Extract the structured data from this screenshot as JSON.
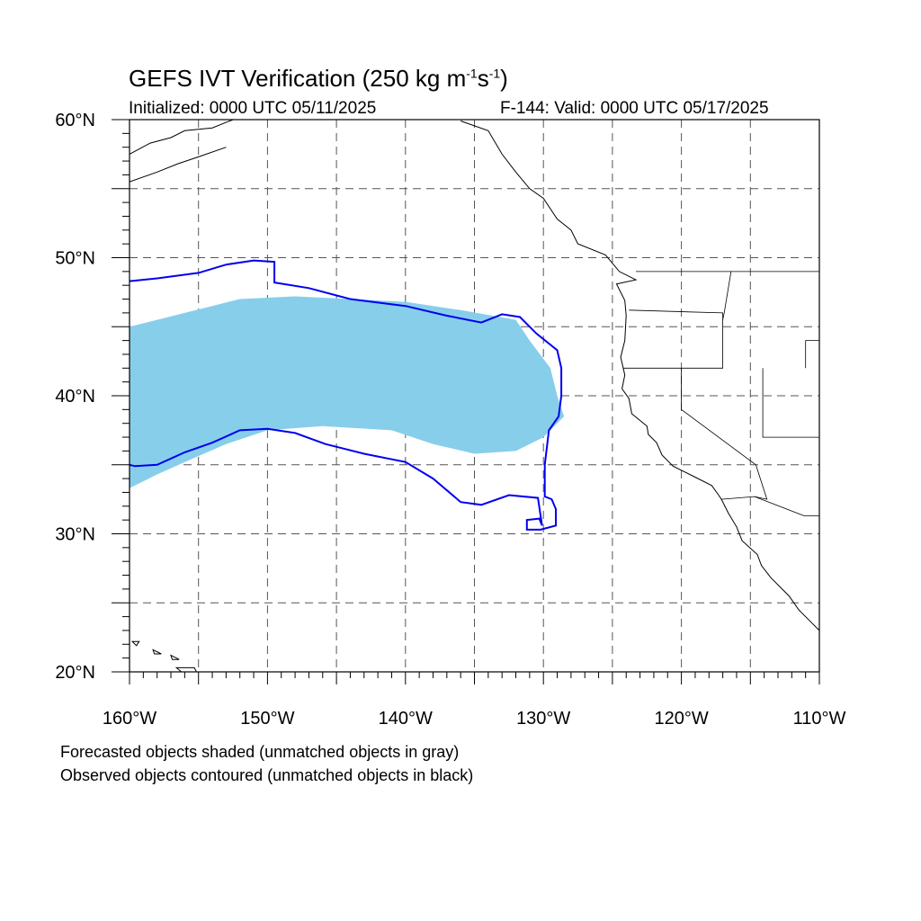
{
  "header": {
    "title_prefix": "GEFS IVT Verification (250 kg m",
    "title_exp1": "-1",
    "title_mid": "s",
    "title_exp2": "-1",
    "title_suffix": ")",
    "initialized": "Initialized: 0000 UTC 05/11/2025",
    "valid": "F-144: Valid: 0000 UTC 05/17/2025"
  },
  "map": {
    "lon_range": [
      -160,
      -110
    ],
    "lat_range": [
      20,
      60
    ],
    "grid_lon_step": 5,
    "grid_lat_step": 5,
    "x_ticks": [
      "160°W",
      "150°W",
      "140°W",
      "130°W",
      "120°W",
      "110°W"
    ],
    "y_ticks": [
      "60°N",
      "50°N",
      "40°N",
      "30°N",
      "20°N"
    ],
    "colors": {
      "forecast_fill": "#87ceeb",
      "observed_contour": "#0000ee",
      "coast": "#000000",
      "grid": "#555555"
    },
    "forecast_object": {
      "description_hint": "forecasted IVT object (matched)",
      "lonlat": [
        [
          -160,
          45
        ],
        [
          -158,
          45.5
        ],
        [
          -156,
          46
        ],
        [
          -154,
          46.5
        ],
        [
          -152,
          47
        ],
        [
          -148,
          47.2
        ],
        [
          -144,
          47
        ],
        [
          -140,
          46.8
        ],
        [
          -136,
          46.2
        ],
        [
          -132,
          45.5
        ],
        [
          -131,
          44
        ],
        [
          -129.5,
          42
        ],
        [
          -129,
          40
        ],
        [
          -128.5,
          38.5
        ],
        [
          -130,
          37
        ],
        [
          -132,
          36
        ],
        [
          -135,
          35.8
        ],
        [
          -138,
          36.5
        ],
        [
          -141,
          37.5
        ],
        [
          -146,
          37.8
        ],
        [
          -150,
          37.5
        ],
        [
          -153,
          36.5
        ],
        [
          -156,
          35.2
        ],
        [
          -158,
          34.3
        ],
        [
          -160,
          33.3
        ]
      ]
    },
    "observed_object": {
      "description_hint": "observed IVT object contour (matched)",
      "lonlat": [
        [
          -160,
          48.3
        ],
        [
          -158,
          48.5
        ],
        [
          -155,
          48.9
        ],
        [
          -153,
          49.5
        ],
        [
          -151,
          49.8
        ],
        [
          -149.5,
          49.7
        ],
        [
          -149.5,
          48.2
        ],
        [
          -147,
          47.8
        ],
        [
          -144,
          47
        ],
        [
          -140,
          46.5
        ],
        [
          -137,
          45.8
        ],
        [
          -134.5,
          45.3
        ],
        [
          -133,
          45.9
        ],
        [
          -131.7,
          45.7
        ],
        [
          -130.5,
          44.5
        ],
        [
          -129,
          43.3
        ],
        [
          -128.7,
          42
        ],
        [
          -128.7,
          40
        ],
        [
          -128.9,
          38.5
        ],
        [
          -129.6,
          37.5
        ],
        [
          -129.9,
          35
        ],
        [
          -129.9,
          32.7
        ],
        [
          -129.4,
          32.5
        ],
        [
          -129.1,
          31.8
        ],
        [
          -129.1,
          30.6
        ],
        [
          -130.2,
          30.3
        ],
        [
          -131.2,
          30.3
        ],
        [
          -131.2,
          31.0
        ],
        [
          -130.3,
          31.1
        ],
        [
          -130.1,
          30.6
        ],
        [
          -130.4,
          32.6
        ],
        [
          -132.5,
          32.8
        ],
        [
          -134.5,
          32.1
        ],
        [
          -136,
          32.3
        ],
        [
          -138,
          34
        ],
        [
          -140,
          35.2
        ],
        [
          -143,
          35.8
        ],
        [
          -145.8,
          36.5
        ],
        [
          -148,
          37.3
        ],
        [
          -150,
          37.6
        ],
        [
          -152,
          37.5
        ],
        [
          -154,
          36.6
        ],
        [
          -156,
          35.9
        ],
        [
          -158,
          35.0
        ],
        [
          -159.6,
          34.9
        ],
        [
          -160,
          35.0
        ]
      ]
    },
    "coastline_lonlat": [
      [
        -136,
        59.9
      ],
      [
        -134,
        59.2
      ],
      [
        -133,
        57.5
      ],
      [
        -132,
        56.2
      ],
      [
        -131,
        55
      ],
      [
        -130,
        54.3
      ],
      [
        -129,
        52.8
      ],
      [
        -128,
        52
      ],
      [
        -127.5,
        51
      ],
      [
        -125.5,
        50.2
      ],
      [
        -124.5,
        49
      ],
      [
        -123.3,
        48.4
      ],
      [
        -124.7,
        48.1
      ],
      [
        -124.1,
        46.9
      ],
      [
        -124,
        45.8
      ],
      [
        -124.1,
        44
      ],
      [
        -124.4,
        42.8
      ],
      [
        -124.1,
        41.5
      ],
      [
        -124.3,
        40.5
      ],
      [
        -123.8,
        39.8
      ],
      [
        -123.6,
        38.7
      ],
      [
        -122.5,
        37.8
      ],
      [
        -122.4,
        37.2
      ],
      [
        -121.8,
        36.6
      ],
      [
        -121.4,
        35.7
      ],
      [
        -120.6,
        34.9
      ],
      [
        -119.2,
        34.2
      ],
      [
        -117.8,
        33.5
      ],
      [
        -117.3,
        32.8
      ],
      [
        -117.1,
        32.5
      ],
      [
        -116.6,
        31.5
      ],
      [
        -116,
        30.5
      ],
      [
        -115.6,
        29.5
      ],
      [
        -114.5,
        28.5
      ],
      [
        -114.2,
        27.7
      ],
      [
        -113.5,
        26.8
      ],
      [
        -112.2,
        25.5
      ],
      [
        -111.5,
        24.5
      ],
      [
        -110.5,
        23.5
      ],
      [
        -110,
        23
      ]
    ],
    "states_lonlat": [
      [
        [
          -123.3,
          49
        ],
        [
          -110,
          49
        ]
      ],
      [
        [
          -124.2,
          42
        ],
        [
          -117,
          42
        ],
        [
          -117,
          46
        ],
        [
          -123.8,
          46.2
        ]
      ],
      [
        [
          -117,
          45.5
        ],
        [
          -116.9,
          46
        ],
        [
          -116.4,
          49
        ]
      ],
      [
        [
          -120,
          42
        ],
        [
          -120,
          39
        ],
        [
          -114.6,
          35
        ]
      ],
      [
        [
          -114.6,
          35
        ],
        [
          -113.8,
          32.5
        ],
        [
          -114.7,
          32.7
        ],
        [
          -117.1,
          32.5
        ]
      ],
      [
        [
          -111,
          42
        ],
        [
          -111,
          44
        ],
        [
          -110,
          44
        ]
      ],
      [
        [
          -114.1,
          42
        ],
        [
          -114.1,
          37
        ],
        [
          -110,
          37
        ]
      ],
      [
        [
          -114.7,
          32.7
        ],
        [
          -111.1,
          31.3
        ],
        [
          -110,
          31.3
        ]
      ]
    ],
    "hawaii_lonlat": [
      [
        [
          -159.8,
          22.2
        ],
        [
          -159.3,
          22.2
        ],
        [
          -159.5,
          21.9
        ],
        [
          -159.8,
          22.2
        ]
      ],
      [
        [
          -158.3,
          21.6
        ],
        [
          -157.7,
          21.3
        ],
        [
          -158.2,
          21.3
        ],
        [
          -158.3,
          21.6
        ]
      ],
      [
        [
          -157.0,
          21.2
        ],
        [
          -156.4,
          20.9
        ],
        [
          -156.9,
          20.9
        ],
        [
          -157.0,
          21.2
        ]
      ],
      [
        [
          -156.6,
          20.3
        ],
        [
          -155.3,
          20.3
        ],
        [
          -155.0,
          19.7
        ],
        [
          -155.7,
          19.3
        ],
        [
          -156.0,
          19.8
        ],
        [
          -156.6,
          20.3
        ]
      ]
    ]
  },
  "captions": {
    "line1": "Forecasted objects shaded (unmatched objects in gray)",
    "line2": "Observed objects contoured (unmatched objects in black)"
  }
}
